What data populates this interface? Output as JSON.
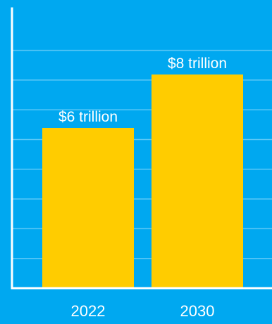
{
  "colors": {
    "background": "#00a8f0",
    "bar": "#ffcc00",
    "axis": "#ffffff",
    "grid": "#5cc8f7",
    "text": "#ffffff"
  },
  "chart_data": {
    "type": "bar",
    "categories": [
      "2022",
      "2030"
    ],
    "values": [
      6,
      8
    ],
    "data_labels": [
      "$6 trillion",
      "$8 trillion"
    ],
    "ylim": [
      0,
      10
    ],
    "grid": true,
    "legend": "none"
  }
}
